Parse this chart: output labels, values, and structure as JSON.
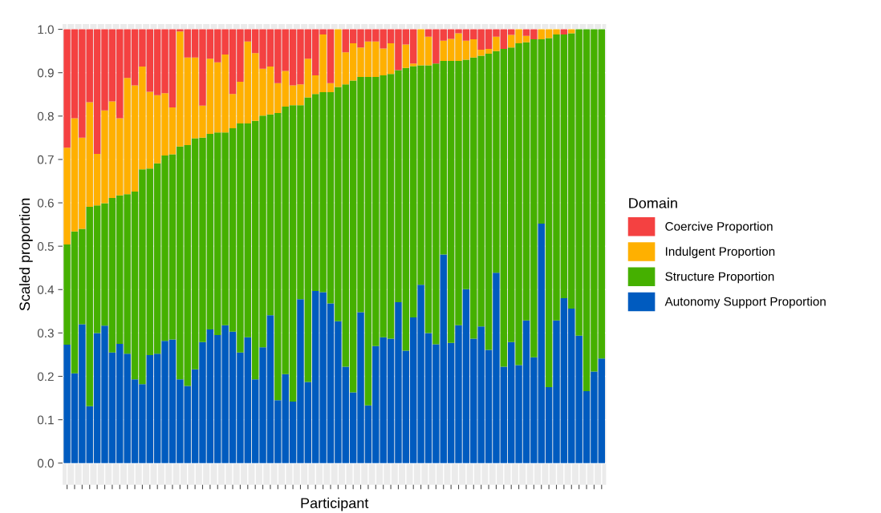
{
  "chart_data": {
    "type": "bar",
    "stacked": true,
    "xlabel": "Participant",
    "ylabel": "Scaled proportion",
    "legend_title": "Domain",
    "legend": "right",
    "grid": true,
    "categories": [
      null,
      null,
      null,
      null,
      null,
      null,
      null,
      null,
      null,
      null,
      null,
      null,
      null,
      null,
      null,
      null,
      null,
      null,
      null,
      null,
      null,
      null,
      null,
      null,
      null,
      null,
      null,
      null,
      null,
      null,
      null,
      null,
      null,
      null,
      null,
      null,
      null,
      null,
      null,
      null,
      null,
      null,
      null,
      null,
      null,
      null,
      null,
      null,
      null,
      null,
      null,
      null,
      null,
      null,
      null,
      null,
      null,
      null,
      null,
      null,
      null,
      null,
      null,
      null,
      null,
      null,
      null,
      null,
      null,
      null,
      null,
      null
    ],
    "ylim": [
      -0.05,
      1.012
    ],
    "yticks": [
      {
        "value": 0,
        "label": "0.0"
      },
      {
        "value": 0.1,
        "label": "0.1"
      },
      {
        "value": 0.2,
        "label": "0.2"
      },
      {
        "value": 0.3,
        "label": "0.3"
      },
      {
        "value": 0.4,
        "label": "0.4"
      },
      {
        "value": 0.5,
        "label": "0.5"
      },
      {
        "value": 0.6,
        "label": "0.6"
      },
      {
        "value": 0.7,
        "label": "0.7"
      },
      {
        "value": 0.8,
        "label": "0.8"
      },
      {
        "value": 0.9,
        "label": "0.9"
      },
      {
        "value": 1,
        "label": "1.0"
      }
    ],
    "series": [
      {
        "name": "Autonomy Support Proportion",
        "color": "#005bbf",
        "values": [
          0.273,
          0.207,
          0.32,
          0.131,
          0.3,
          0.317,
          0.255,
          0.275,
          0.252,
          0.193,
          0.182,
          0.249,
          0.252,
          0.282,
          0.285,
          0.193,
          0.178,
          0.216,
          0.279,
          0.308,
          0.295,
          0.318,
          0.303,
          0.255,
          0.29,
          0.193,
          0.267,
          0.341,
          0.145,
          0.205,
          0.142,
          0.378,
          0.187,
          0.397,
          0.394,
          0.368,
          0.327,
          0.222,
          0.163,
          0.348,
          0.133,
          0.27,
          0.29,
          0.287,
          0.371,
          0.259,
          0.336,
          0.411,
          0.3,
          0.274,
          0.481,
          0.277,
          0.318,
          0.401,
          0.287,
          0.315,
          0.261,
          0.439,
          0.222,
          0.279,
          0.226,
          0.329,
          0.244,
          0.552,
          0.175,
          0.329,
          0.38,
          0.356,
          0.294,
          0.166,
          0.211,
          0.241
        ]
      },
      {
        "name": "Structure Proportion",
        "color": "#45b000",
        "values": [
          0.231,
          0.327,
          0.22,
          0.46,
          0.294,
          0.282,
          0.356,
          0.342,
          0.368,
          0.433,
          0.495,
          0.43,
          0.439,
          0.427,
          0.427,
          0.537,
          0.555,
          0.533,
          0.471,
          0.451,
          0.467,
          0.444,
          0.469,
          0.528,
          0.493,
          0.596,
          0.534,
          0.463,
          0.662,
          0.617,
          0.683,
          0.447,
          0.656,
          0.454,
          0.461,
          0.487,
          0.54,
          0.651,
          0.719,
          0.542,
          0.757,
          0.62,
          0.604,
          0.61,
          0.535,
          0.652,
          0.579,
          0.506,
          0.617,
          0.647,
          0.446,
          0.65,
          0.609,
          0.529,
          0.648,
          0.624,
          0.683,
          0.511,
          0.733,
          0.679,
          0.742,
          0.641,
          0.733,
          0.425,
          0.805,
          0.659,
          0.608,
          0.635,
          0.706,
          0.834,
          0.789,
          0.759
        ]
      },
      {
        "name": "Indulgent Proportion",
        "color": "#ffb000",
        "values": [
          0.223,
          0.261,
          0.21,
          0.241,
          0.119,
          0.214,
          0.223,
          0.178,
          0.268,
          0.245,
          0.237,
          0.177,
          0.157,
          0.144,
          0.108,
          0.265,
          0.202,
          0.186,
          0.074,
          0.173,
          0.162,
          0.18,
          0.079,
          0.096,
          0.189,
          0.156,
          0.108,
          0.11,
          0.069,
          0.082,
          0.046,
          0.048,
          0.089,
          0.043,
          0.133,
          0.021,
          0.133,
          0.074,
          0.086,
          0.068,
          0.082,
          0.082,
          0.062,
          0.071,
          0,
          0.054,
          0.006,
          0.083,
          0.066,
          0,
          0.047,
          0.051,
          0.064,
          0.044,
          0.042,
          0.014,
          0.011,
          0.033,
          0,
          0.029,
          0.032,
          0.015,
          0,
          0.023,
          0.02,
          0.012,
          0,
          0.009,
          0,
          0,
          0,
          0
        ]
      },
      {
        "name": "Coercive Proportion",
        "color": "#f44141",
        "values": [
          0.273,
          0.205,
          0.25,
          0.168,
          0.287,
          0.187,
          0.166,
          0.205,
          0.112,
          0.129,
          0.086,
          0.144,
          0.152,
          0.147,
          0.18,
          0.005,
          0.065,
          0.065,
          0.176,
          0.068,
          0.076,
          0.058,
          0.149,
          0.121,
          0.028,
          0.055,
          0.091,
          0.086,
          0.124,
          0.096,
          0.129,
          0.127,
          0.068,
          0.106,
          0.012,
          0.124,
          0,
          0.053,
          0.032,
          0.042,
          0.028,
          0.028,
          0.044,
          0.032,
          0.094,
          0.035,
          0.079,
          0,
          0.017,
          0.079,
          0.026,
          0.022,
          0.009,
          0.026,
          0.023,
          0.047,
          0.045,
          0.017,
          0.045,
          0.013,
          0,
          0.015,
          0.023,
          0,
          0,
          0,
          0.012,
          0,
          0,
          0,
          0,
          0
        ]
      }
    ]
  }
}
